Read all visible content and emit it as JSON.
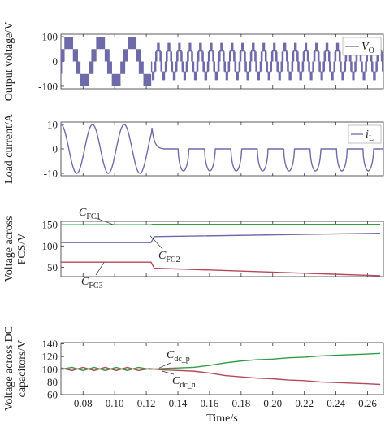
{
  "colors": {
    "purple": "#6f6ba8",
    "green": "#2f9d45",
    "red": "#b5485a",
    "axis": "#333333"
  },
  "chart_data": [
    {
      "type": "line",
      "ylabel": "Output voltage/V",
      "ylim": [
        -110,
        110
      ],
      "yticks": [
        100,
        0,
        -100
      ],
      "legend": {
        "symbol": "V",
        "sub": "O",
        "position": "top-right"
      },
      "series": [
        {
          "name": "V_O",
          "color": "#6f6ba8",
          "pwm_levels_before_step": [
            -100,
            -50,
            0,
            50,
            100
          ],
          "pwm_levels_after_step": [
            -100,
            -50,
            0,
            50,
            100
          ],
          "fundamental_hz_before_step": 50,
          "fundamental_hz_after_step": 150,
          "step_time": 0.123
        }
      ]
    },
    {
      "type": "line",
      "ylabel": "Load current/A",
      "ylim": [
        -11,
        11
      ],
      "yticks": [
        10,
        0,
        -10
      ],
      "legend": {
        "symbol": "i",
        "sub": "L",
        "position": "top-right"
      },
      "series": [
        {
          "name": "i_L",
          "color": "#6f6ba8",
          "x": [
            0.066,
            0.072,
            0.078,
            0.084,
            0.09,
            0.096,
            0.102,
            0.108,
            0.114,
            0.12,
            0.123,
            0.126,
            0.13,
            0.133,
            0.136,
            0.14,
            0.145,
            0.15,
            0.155,
            0.16,
            0.165,
            0.17,
            0.175,
            0.18,
            0.185,
            0.19,
            0.195,
            0.2,
            0.205,
            0.21,
            0.215,
            0.22,
            0.225,
            0.23,
            0.235,
            0.24,
            0.245,
            0.25,
            0.255,
            0.26,
            0.265,
            0.268
          ],
          "y": [
            -6,
            -10,
            8,
            -3,
            -10,
            9,
            -2,
            -9,
            10,
            -2,
            9,
            3,
            0,
            -9,
            -9,
            0,
            0,
            -9,
            0,
            0,
            -9,
            0,
            0,
            -9,
            0,
            0,
            -9,
            0,
            0,
            -9,
            0,
            0,
            -9,
            0,
            0,
            -9,
            0,
            0,
            -9,
            0,
            0,
            -9
          ]
        }
      ]
    },
    {
      "type": "line",
      "ylabel": [
        "Voltage across",
        "FCS/V"
      ],
      "ylim": [
        28,
        158
      ],
      "yticks": [
        150,
        100,
        50
      ],
      "series": [
        {
          "name": "C_FC1",
          "color": "#2f9d45",
          "x": [
            0.066,
            0.123,
            0.124,
            0.268
          ],
          "y": [
            150,
            150,
            151,
            151
          ]
        },
        {
          "name": "C_FC2",
          "color": "#6f6ba8",
          "x": [
            0.066,
            0.123,
            0.125,
            0.268
          ],
          "y": [
            108,
            108,
            122,
            130
          ]
        },
        {
          "name": "C_FC3",
          "color": "#b5485a",
          "x": [
            0.066,
            0.123,
            0.125,
            0.268
          ],
          "y": [
            62,
            62,
            48,
            30
          ]
        }
      ],
      "annotations": [
        {
          "symbol": "C",
          "sub": "FC1"
        },
        {
          "symbol": "C",
          "sub": "FC2"
        },
        {
          "symbol": "C",
          "sub": "FC3"
        }
      ]
    },
    {
      "type": "line",
      "ylabel": [
        "Voltage across DC",
        "capacitors/V"
      ],
      "xlabel": "Time/s",
      "xlim": [
        0.066,
        0.27
      ],
      "xticks": [
        "0.08",
        "0.10",
        "0.12",
        "0.14",
        "0.16",
        "0.18",
        "0.20",
        "0.22",
        "0.24",
        "0.26"
      ],
      "ylim": [
        60,
        142
      ],
      "yticks": [
        140,
        120,
        100,
        80,
        60
      ],
      "series": [
        {
          "name": "C_dc_p",
          "color": "#2f9d45",
          "x": [
            0.066,
            0.073,
            0.08,
            0.087,
            0.094,
            0.101,
            0.108,
            0.115,
            0.122,
            0.13,
            0.14,
            0.15,
            0.16,
            0.17,
            0.18,
            0.19,
            0.2,
            0.21,
            0.22,
            0.23,
            0.24,
            0.25,
            0.26,
            0.268
          ],
          "y": [
            100,
            103,
            98,
            103,
            98,
            103,
            98,
            103,
            100,
            101,
            102,
            103,
            106,
            110,
            113,
            115,
            116,
            118,
            119,
            121,
            122,
            123,
            124,
            125
          ]
        },
        {
          "name": "C_dc_n",
          "color": "#b5485a",
          "x": [
            0.066,
            0.073,
            0.08,
            0.087,
            0.094,
            0.101,
            0.108,
            0.115,
            0.122,
            0.13,
            0.14,
            0.15,
            0.16,
            0.17,
            0.18,
            0.19,
            0.2,
            0.21,
            0.22,
            0.23,
            0.24,
            0.25,
            0.26,
            0.268
          ],
          "y": [
            102,
            98,
            103,
            98,
            103,
            98,
            103,
            98,
            101,
            99,
            98,
            97,
            94,
            90,
            88,
            86,
            85,
            83,
            82,
            80,
            79,
            78,
            77,
            76
          ]
        }
      ],
      "annotations": [
        {
          "symbol": "C",
          "sub": "dc_p"
        },
        {
          "symbol": "C",
          "sub": "dc_n"
        }
      ]
    }
  ]
}
